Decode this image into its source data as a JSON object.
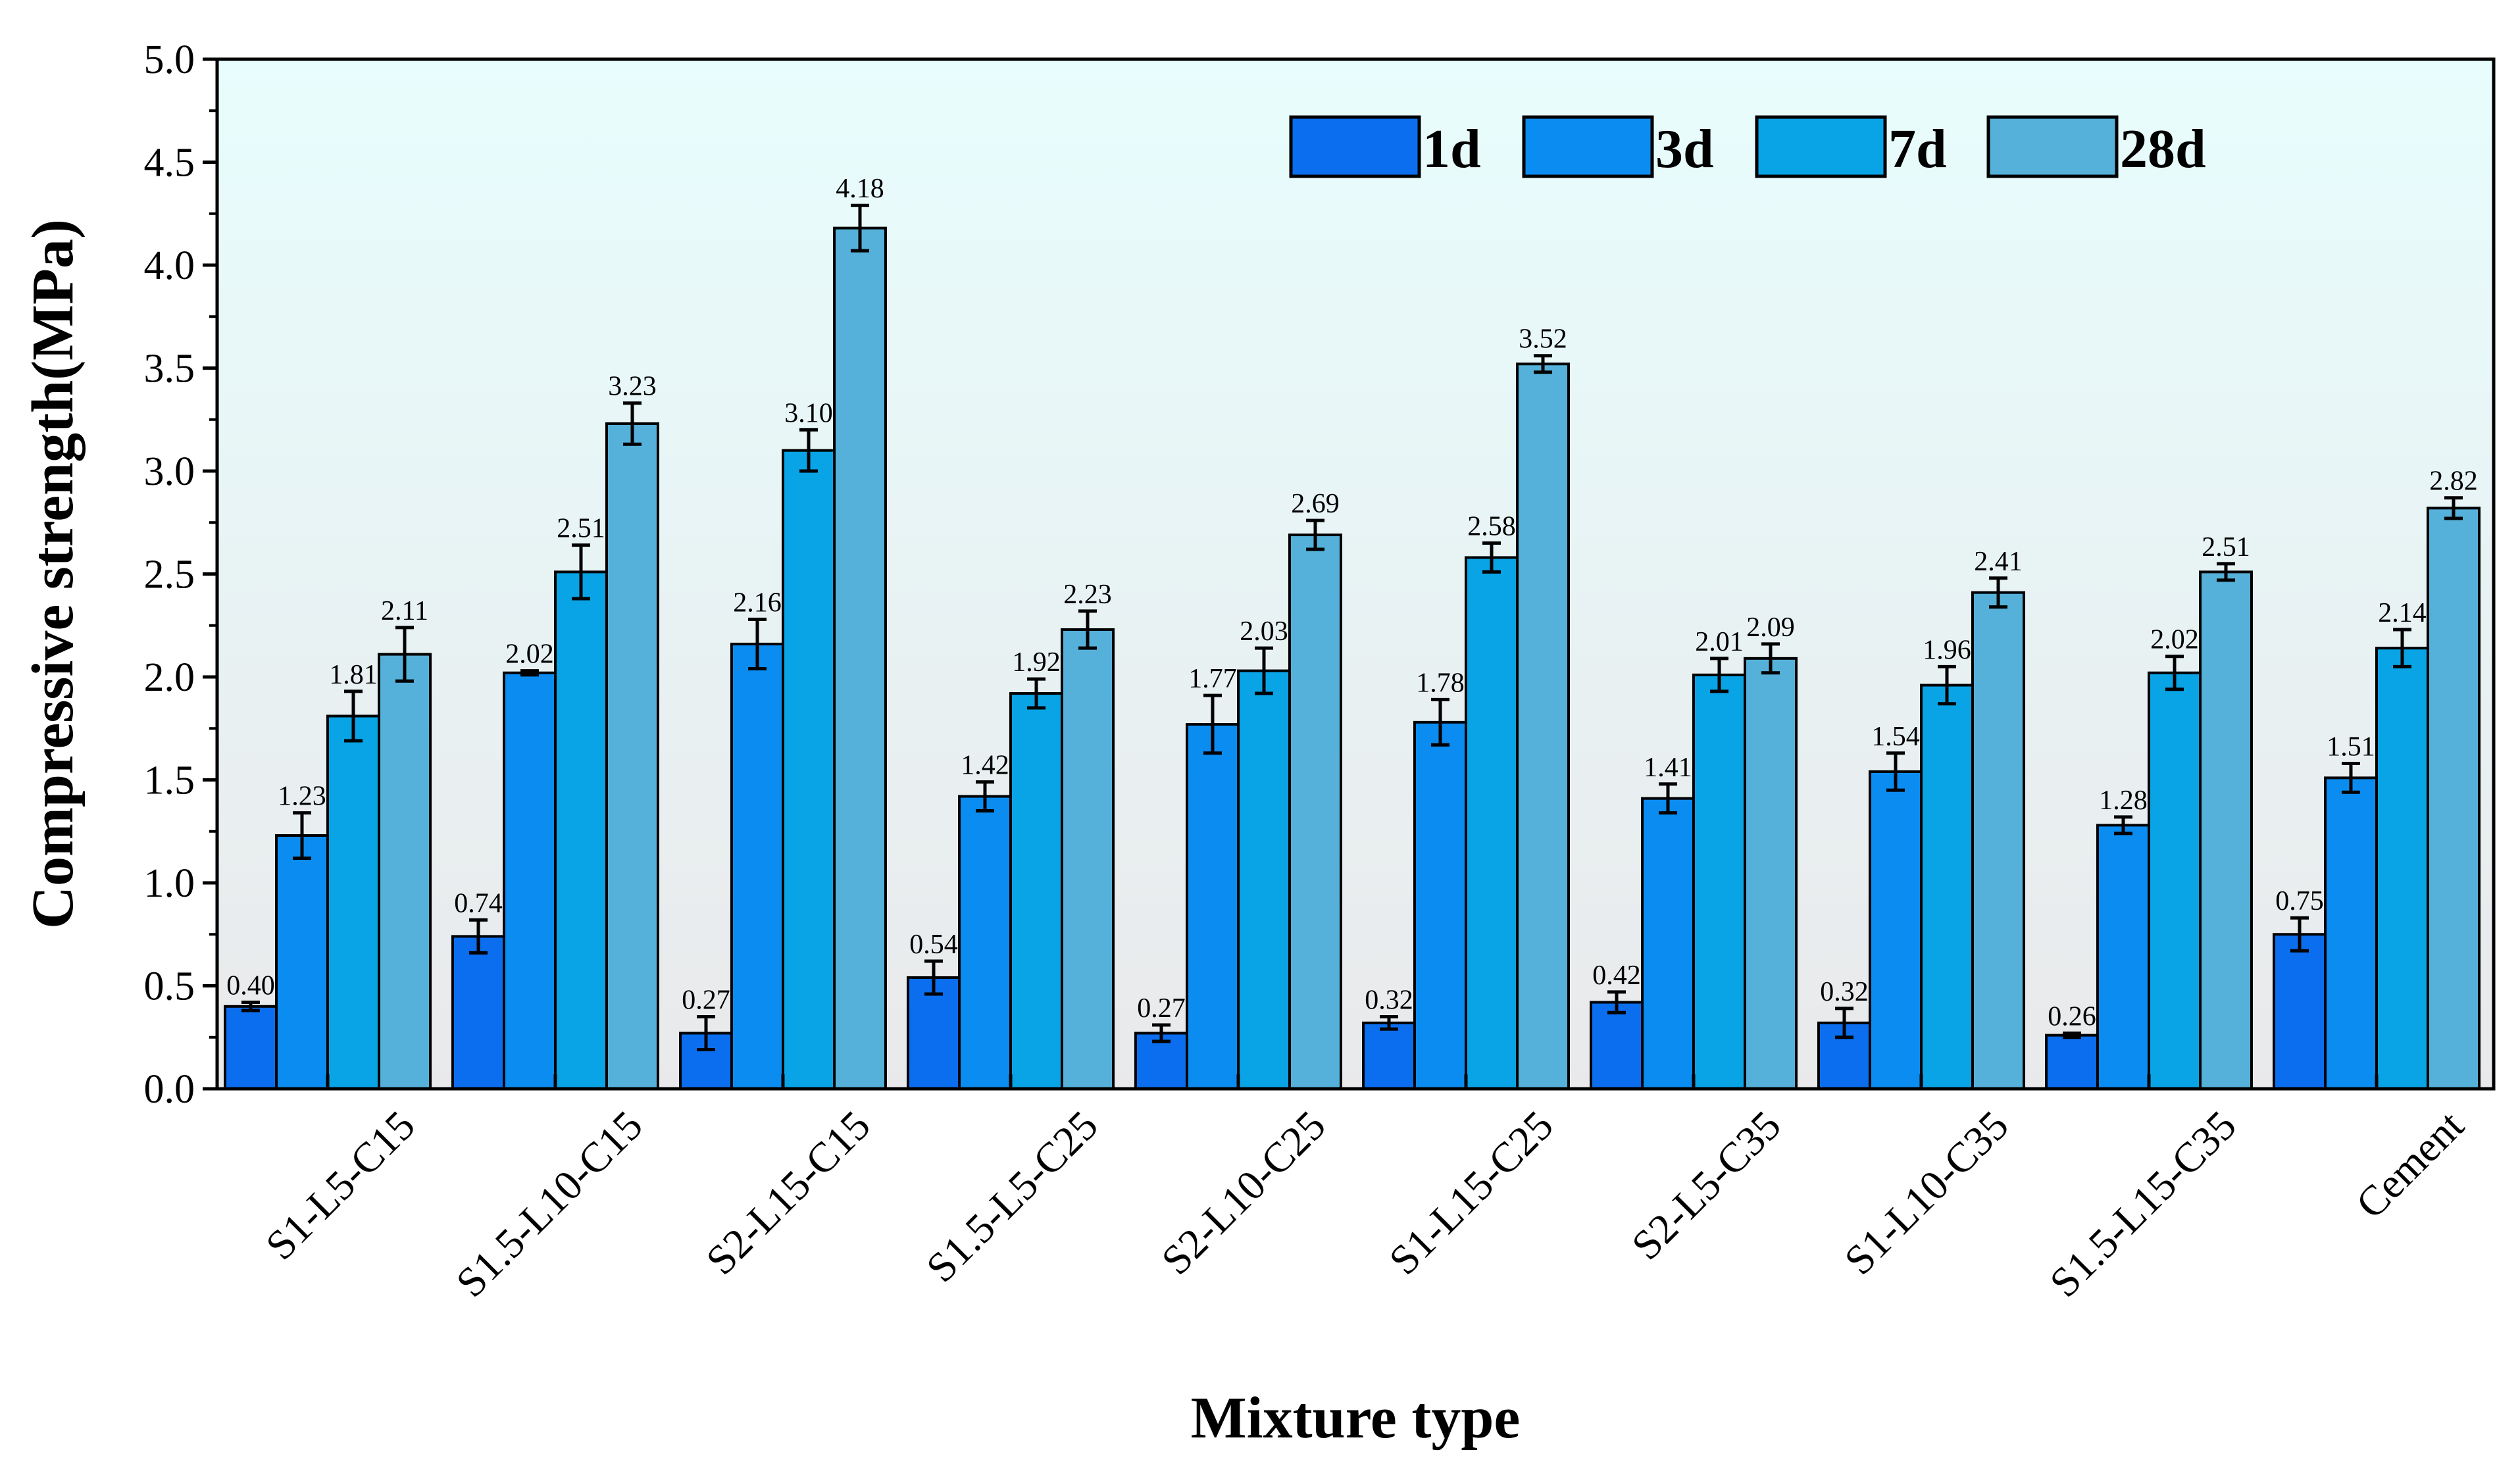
{
  "chart_data": {
    "type": "bar",
    "title": "",
    "xlabel": "Mixture type",
    "ylabel": "Compressive strength(MPa)",
    "ylim": [
      0,
      5.0
    ],
    "yticks": [
      "0.0",
      "0.5",
      "1.0",
      "1.5",
      "2.0",
      "2.5",
      "3.0",
      "3.5",
      "4.0",
      "4.5",
      "5.0"
    ],
    "grid": false,
    "legend_position": "top-right",
    "categories": [
      "S1-L5-C15",
      "S1.5-L10-C15",
      "S2-L15-C15",
      "S1.5-L5-C25",
      "S2-L10-C25",
      "S1-L15-C25",
      "S2-L5-C35",
      "S1-L10-C35",
      "S1.5-L15-C35",
      "Cement"
    ],
    "series": [
      {
        "name": "1d",
        "color": "#0b6eef",
        "values": [
          0.4,
          0.74,
          0.27,
          0.54,
          0.27,
          0.32,
          0.42,
          0.32,
          0.26,
          0.75
        ],
        "errors": [
          0.02,
          0.08,
          0.08,
          0.08,
          0.04,
          0.03,
          0.05,
          0.07,
          0.01,
          0.08
        ],
        "labels": [
          "0.40",
          "0.74",
          "0.27",
          "0.54",
          "0.27",
          "0.32",
          "0.42",
          "0.32",
          "0.26",
          "0.75"
        ]
      },
      {
        "name": "3d",
        "color": "#0b8cf1",
        "values": [
          1.23,
          2.02,
          2.16,
          1.42,
          1.77,
          1.78,
          1.41,
          1.54,
          1.28,
          1.51
        ],
        "errors": [
          0.11,
          0.01,
          0.12,
          0.07,
          0.14,
          0.11,
          0.07,
          0.09,
          0.04,
          0.07
        ],
        "labels": [
          "1.23",
          "2.02",
          "2.16",
          "1.42",
          "1.77",
          "1.78",
          "1.41",
          "1.54",
          "1.28",
          "1.51"
        ]
      },
      {
        "name": "7d",
        "color": "#08a4e6",
        "values": [
          1.81,
          2.51,
          3.1,
          1.92,
          2.03,
          2.58,
          2.01,
          1.96,
          2.02,
          2.14
        ],
        "errors": [
          0.12,
          0.13,
          0.1,
          0.07,
          0.11,
          0.07,
          0.08,
          0.09,
          0.08,
          0.09
        ],
        "labels": [
          "1.81",
          "2.51",
          "3.10",
          "1.92",
          "2.03",
          "2.58",
          "2.01",
          "1.96",
          "2.02",
          "2.14"
        ]
      },
      {
        "name": "28d",
        "color": "#55b1d9",
        "values": [
          2.11,
          3.23,
          4.18,
          2.23,
          2.69,
          3.52,
          2.09,
          2.41,
          2.51,
          2.82
        ],
        "errors": [
          0.13,
          0.1,
          0.11,
          0.09,
          0.07,
          0.04,
          0.07,
          0.07,
          0.04,
          0.05
        ],
        "labels": [
          "2.11",
          "3.23",
          "4.18",
          "2.23",
          "2.69",
          "3.52",
          "2.09",
          "2.41",
          "2.51",
          "2.82"
        ]
      }
    ]
  },
  "colors": {
    "background_top": "#e8fdfd",
    "background_bottom": "#e9e9eb",
    "axis": "#000000"
  }
}
